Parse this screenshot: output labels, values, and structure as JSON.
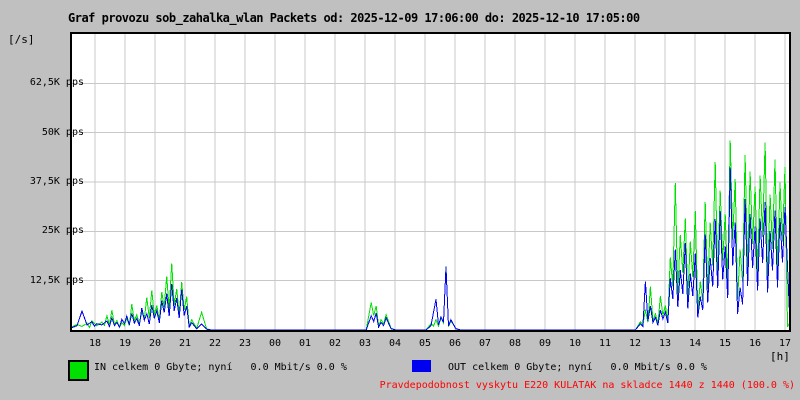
{
  "title": "Graf provozu sob_zahalka_wlan Packets od: 2025-12-09 17:06:00 do: 2025-12-10 17:05:00",
  "y_axis_unit": "[/s]",
  "x_axis_unit": "[h]",
  "colors": {
    "in": "#00e000",
    "out": "#0000f0",
    "grid": "#c8c8c8",
    "plot_background": "#ffffff",
    "page_background": "#c0c0c0",
    "border": "#000000",
    "alert": "#ff0000"
  },
  "legend": {
    "in": "IN celkem 0 Gbyte; nyní   0.0 Mbit/s 0.0 %",
    "out": "OUT celkem 0 Gbyte; nyní   0.0 Mbit/s 0.0 %"
  },
  "alert_text": "Pravdepodobnost vyskytu E220 KULATAK na skladce 1440 z 1440 (100.0 %)",
  "chart_data": {
    "type": "line",
    "title": "Graf provozu sob_zahalka_wlan Packets od: 2025-12-09 17:06:00 do: 2025-12-10 17:05:00",
    "legend_position": "bottom",
    "grid": true,
    "x_axis": {
      "unit": "[h]",
      "start": "2025-12-09 17:06:00",
      "end": "2025-12-10 17:05:00",
      "hours_per_gridline": 1,
      "tick_labels": [
        "18",
        "19",
        "20",
        "21",
        "22",
        "23",
        "00",
        "01",
        "02",
        "03",
        "04",
        "05",
        "06",
        "07",
        "08",
        "09",
        "10",
        "11",
        "12",
        "13",
        "14",
        "15",
        "16",
        "17"
      ]
    },
    "y_axis": {
      "unit": "[/s]",
      "ylim_pps": [
        0,
        75000
      ],
      "ticks": [
        {
          "value_pps": 62500,
          "label": "62,5K pps"
        },
        {
          "value_pps": 50000,
          "label": "50K pps"
        },
        {
          "value_pps": 37500,
          "label": "37,5K pps"
        },
        {
          "value_pps": 25000,
          "label": "25K pps"
        },
        {
          "value_pps": 12500,
          "label": "12,5K pps"
        }
      ]
    },
    "sample_interval_minutes": 10,
    "series": [
      {
        "name": "IN",
        "color": "#00e000",
        "unit": "kpps",
        "values": [
          0.8,
          1.4,
          0.9,
          1.7,
          2.3,
          1.1,
          2.0,
          3.6,
          5.0,
          2.4,
          1.8,
          3.0,
          6.5,
          3.9,
          4.6,
          8.2,
          10.0,
          6.2,
          9.6,
          13.6,
          16.9,
          10.4,
          12.1,
          8.4,
          2.6,
          0.4,
          4.5,
          0.3,
          0,
          0,
          0,
          0,
          0,
          0,
          0,
          0,
          0,
          0,
          0,
          0,
          0,
          0,
          0,
          0,
          0,
          0,
          0,
          0,
          0,
          0,
          0,
          0,
          0,
          0,
          0,
          0,
          0,
          0,
          0,
          0,
          7.0,
          6.1,
          2.6,
          3.9,
          0.4,
          0,
          0,
          0,
          0,
          0,
          0,
          0,
          1.6,
          2.6,
          3.1,
          16.2,
          2.3,
          0.4,
          0,
          0,
          0,
          0,
          0,
          0,
          0,
          0,
          0,
          0,
          0,
          0,
          0,
          0,
          0,
          0,
          0,
          0,
          0,
          0,
          0,
          0,
          0,
          0,
          0,
          0,
          0,
          0,
          0,
          0,
          0,
          0,
          0,
          0,
          0,
          0,
          2.1,
          5.2,
          11.0,
          4.1,
          8.6,
          6.2,
          18.4,
          37.2,
          24.1,
          28.3,
          22.4,
          30.2,
          12.3,
          32.4,
          27.2,
          42.6,
          35.3,
          29.4,
          48.0,
          38.2,
          20.4,
          44.3,
          40.1,
          36.4,
          39.2,
          47.5,
          34.3,
          43.2,
          37.4,
          41.3,
          2.0
        ]
      },
      {
        "name": "OUT",
        "color": "#0000f0",
        "unit": "kpps",
        "values": [
          0.6,
          1.1,
          4.8,
          1.3,
          2.1,
          1.6,
          1.3,
          2.3,
          3.1,
          1.9,
          2.7,
          3.5,
          4.2,
          2.9,
          5.6,
          4.1,
          6.3,
          4.9,
          7.4,
          9.2,
          11.6,
          8.1,
          10.3,
          6.1,
          1.9,
          0.3,
          1.5,
          0.2,
          0,
          0,
          0,
          0,
          0,
          0,
          0,
          0,
          0,
          0,
          0,
          0,
          0,
          0,
          0,
          0,
          0,
          0,
          0,
          0,
          0,
          0,
          0,
          0,
          0,
          0,
          0,
          0,
          0,
          0,
          0,
          0,
          3.6,
          4.3,
          1.9,
          3.1,
          0.3,
          0,
          0,
          0,
          0,
          0,
          0,
          0,
          1.1,
          7.8,
          3.3,
          15.9,
          2.6,
          0.3,
          0,
          0,
          0,
          0,
          0,
          0,
          0,
          0,
          0,
          0,
          0,
          0,
          0,
          0,
          0,
          0,
          0,
          0,
          0,
          0,
          0,
          0,
          0,
          0,
          0,
          0,
          0,
          0,
          0,
          0,
          0,
          0,
          0,
          0,
          0,
          0,
          1.6,
          12.3,
          6.1,
          3.2,
          5.1,
          4.6,
          13.1,
          20.4,
          15.2,
          22.1,
          14.3,
          19.4,
          8.4,
          24.2,
          18.3,
          28.1,
          30.2,
          21.3,
          41.2,
          27.3,
          10.8,
          33.2,
          29.4,
          26.2,
          28.2,
          32.4,
          25.1,
          30.3,
          28.4,
          31.2,
          1.2
        ]
      }
    ]
  }
}
